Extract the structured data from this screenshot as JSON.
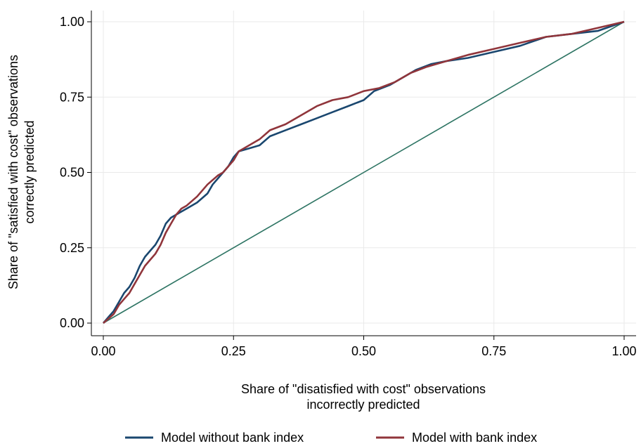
{
  "chart_data": {
    "type": "line",
    "title": "",
    "xlabel_lines": [
      "Share of \"disatisfied with cost\" observations",
      "incorrectly predicted"
    ],
    "ylabel_lines": [
      "Share of \"satisfied with cost\" observations",
      "correctly predicted"
    ],
    "xlim": [
      0,
      1
    ],
    "ylim": [
      0,
      1
    ],
    "xticks": [
      0,
      0.25,
      0.5,
      0.75,
      1
    ],
    "xtick_labels": [
      "0.00",
      "0.25",
      "0.50",
      "0.75",
      "1.00"
    ],
    "yticks": [
      0,
      0.25,
      0.5,
      0.75,
      1
    ],
    "ytick_labels": [
      "0.00",
      "0.25",
      "0.50",
      "0.75",
      "1.00"
    ],
    "grid": true,
    "legend_position": "bottom",
    "series": [
      {
        "name": "Model without bank index",
        "color": "#1a476f",
        "points": [
          [
            0,
            0
          ],
          [
            0.01,
            0.02
          ],
          [
            0.02,
            0.04
          ],
          [
            0.03,
            0.07
          ],
          [
            0.04,
            0.1
          ],
          [
            0.05,
            0.12
          ],
          [
            0.06,
            0.15
          ],
          [
            0.07,
            0.19
          ],
          [
            0.08,
            0.22
          ],
          [
            0.09,
            0.24
          ],
          [
            0.1,
            0.26
          ],
          [
            0.11,
            0.29
          ],
          [
            0.12,
            0.33
          ],
          [
            0.13,
            0.35
          ],
          [
            0.14,
            0.36
          ],
          [
            0.15,
            0.37
          ],
          [
            0.16,
            0.38
          ],
          [
            0.18,
            0.4
          ],
          [
            0.2,
            0.43
          ],
          [
            0.21,
            0.46
          ],
          [
            0.22,
            0.48
          ],
          [
            0.23,
            0.5
          ],
          [
            0.24,
            0.52
          ],
          [
            0.25,
            0.55
          ],
          [
            0.26,
            0.57
          ],
          [
            0.28,
            0.58
          ],
          [
            0.3,
            0.59
          ],
          [
            0.32,
            0.62
          ],
          [
            0.35,
            0.64
          ],
          [
            0.38,
            0.66
          ],
          [
            0.41,
            0.68
          ],
          [
            0.44,
            0.7
          ],
          [
            0.47,
            0.72
          ],
          [
            0.5,
            0.74
          ],
          [
            0.52,
            0.77
          ],
          [
            0.55,
            0.79
          ],
          [
            0.58,
            0.82
          ],
          [
            0.6,
            0.84
          ],
          [
            0.63,
            0.86
          ],
          [
            0.66,
            0.87
          ],
          [
            0.7,
            0.88
          ],
          [
            0.75,
            0.9
          ],
          [
            0.8,
            0.92
          ],
          [
            0.85,
            0.95
          ],
          [
            0.9,
            0.96
          ],
          [
            0.95,
            0.97
          ],
          [
            1.0,
            1.0
          ]
        ]
      },
      {
        "name": "Model with bank index",
        "color": "#90353b",
        "points": [
          [
            0,
            0
          ],
          [
            0.01,
            0.015
          ],
          [
            0.02,
            0.03
          ],
          [
            0.03,
            0.06
          ],
          [
            0.04,
            0.08
          ],
          [
            0.05,
            0.1
          ],
          [
            0.06,
            0.13
          ],
          [
            0.07,
            0.16
          ],
          [
            0.08,
            0.19
          ],
          [
            0.09,
            0.21
          ],
          [
            0.1,
            0.23
          ],
          [
            0.11,
            0.26
          ],
          [
            0.12,
            0.3
          ],
          [
            0.13,
            0.33
          ],
          [
            0.14,
            0.36
          ],
          [
            0.15,
            0.38
          ],
          [
            0.16,
            0.39
          ],
          [
            0.18,
            0.42
          ],
          [
            0.2,
            0.46
          ],
          [
            0.22,
            0.49
          ],
          [
            0.23,
            0.5
          ],
          [
            0.24,
            0.52
          ],
          [
            0.25,
            0.54
          ],
          [
            0.26,
            0.57
          ],
          [
            0.28,
            0.59
          ],
          [
            0.3,
            0.61
          ],
          [
            0.32,
            0.64
          ],
          [
            0.35,
            0.66
          ],
          [
            0.38,
            0.69
          ],
          [
            0.41,
            0.72
          ],
          [
            0.44,
            0.74
          ],
          [
            0.47,
            0.75
          ],
          [
            0.5,
            0.77
          ],
          [
            0.53,
            0.78
          ],
          [
            0.56,
            0.8
          ],
          [
            0.59,
            0.83
          ],
          [
            0.62,
            0.85
          ],
          [
            0.66,
            0.87
          ],
          [
            0.7,
            0.89
          ],
          [
            0.75,
            0.91
          ],
          [
            0.8,
            0.93
          ],
          [
            0.85,
            0.95
          ],
          [
            0.9,
            0.96
          ],
          [
            0.95,
            0.98
          ],
          [
            1.0,
            1.0
          ]
        ]
      },
      {
        "name": "",
        "color": "#2d7463",
        "points": [
          [
            0,
            0
          ],
          [
            1,
            1
          ]
        ]
      }
    ]
  }
}
